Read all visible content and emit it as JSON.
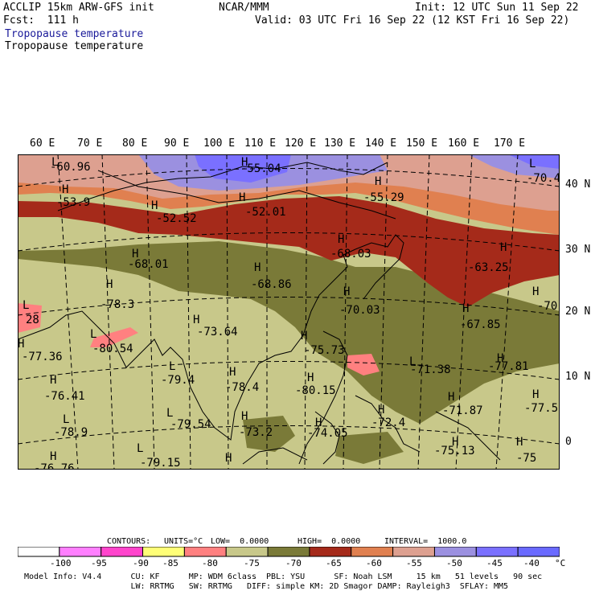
{
  "header": {
    "model": "ACCLIP 15km ARW-GFS init",
    "org": "NCAR/MMM",
    "init": "Init: 12 UTC Sun 11 Sep 22",
    "fcst": "Fcst:  111 h",
    "valid": "Valid: 03 UTC Fri 16 Sep 22 (12 KST Fri 16 Sep 22)",
    "field_title_1": "Tropopause temperature",
    "field_title_2": "Tropopause temperature"
  },
  "map": {
    "lon_labels": [
      "60 E",
      "70 E",
      "80 E",
      "90 E",
      "100 E",
      "110 E",
      "120 E",
      "130 E",
      "140 E",
      "150 E",
      "160 E",
      "170 E"
    ],
    "lat_labels": [
      "40 N",
      "30 N",
      "20 N",
      "10 N",
      "0"
    ],
    "annotations": [
      {
        "type": "label",
        "text": "-60.96"
      },
      {
        "type": "label",
        "text": "-55.04"
      },
      {
        "type": "label",
        "text": "-70.4"
      },
      {
        "type": "label",
        "text": "-53.9"
      },
      {
        "type": "label",
        "text": "-52.52"
      },
      {
        "type": "label",
        "text": "-52.01"
      },
      {
        "type": "label",
        "text": "-55.29"
      },
      {
        "type": "label",
        "text": "-68.01"
      },
      {
        "type": "label",
        "text": "-68.03"
      },
      {
        "type": "label",
        "text": "-63.25"
      },
      {
        "type": "label",
        "text": "-68.86"
      },
      {
        "type": "label",
        "text": "-78.3"
      },
      {
        "type": "label",
        "text": "-70.03"
      },
      {
        "type": "label",
        "text": "-70."
      },
      {
        "type": "label",
        "text": "28"
      },
      {
        "type": "label",
        "text": "-67.85"
      },
      {
        "type": "label",
        "text": "-73.64"
      },
      {
        "type": "label",
        "text": "-80.54"
      },
      {
        "type": "label",
        "text": "-75.73"
      },
      {
        "type": "label",
        "text": "-77.36"
      },
      {
        "type": "label",
        "text": "-71.38"
      },
      {
        "type": "label",
        "text": "-77.81"
      },
      {
        "type": "label",
        "text": "-79.4"
      },
      {
        "type": "label",
        "text": "-78.4"
      },
      {
        "type": "label",
        "text": "-80.15"
      },
      {
        "type": "label",
        "text": "-76.41"
      },
      {
        "type": "label",
        "text": "-71.87"
      },
      {
        "type": "label",
        "text": "-77.5"
      },
      {
        "type": "label",
        "text": "-79.54"
      },
      {
        "type": "label",
        "text": "-72.4"
      },
      {
        "type": "label",
        "text": "-78.9"
      },
      {
        "type": "label",
        "text": "-73.2"
      },
      {
        "type": "label",
        "text": "-74.05"
      },
      {
        "type": "label",
        "text": "-75.13"
      },
      {
        "type": "label",
        "text": "-75"
      },
      {
        "type": "label",
        "text": "-76.76"
      },
      {
        "type": "label",
        "text": "-79.15"
      }
    ]
  },
  "contour_info": {
    "contours": "CONTOURS:",
    "units": "UNITS=°C",
    "low": "LOW=  0.0000",
    "high": "HIGH=  0.0000",
    "interval": "INTERVAL=  1000.0"
  },
  "colorbar": {
    "colors": [
      "#ffffff",
      "#ff7fff",
      "#ff44cc",
      "#ffff77",
      "#ff8080",
      "#c8c88a",
      "#7a7a38",
      "#a52a1a",
      "#e08050",
      "#dda090",
      "#9b90e0",
      "#7a70ff",
      "#6a6aff"
    ],
    "labels": [
      "-100",
      "-95",
      "-90",
      "-85",
      "-80",
      "-75",
      "-70",
      "-65",
      "-60",
      "-55",
      "-50",
      "-45",
      "-40"
    ],
    "unit": "°C"
  },
  "footer": {
    "line1": "Model Info: V4.4      CU: KF      MP: WDM 6class  PBL: YSU      SF: Noah LSM     15 km   51 levels   90 sec",
    "line2": "                      LW: RRTMG   SW: RRTMG   DIFF: simple KM: 2D Smagor DAMP: Rayleigh3  SFLAY: MM5"
  }
}
